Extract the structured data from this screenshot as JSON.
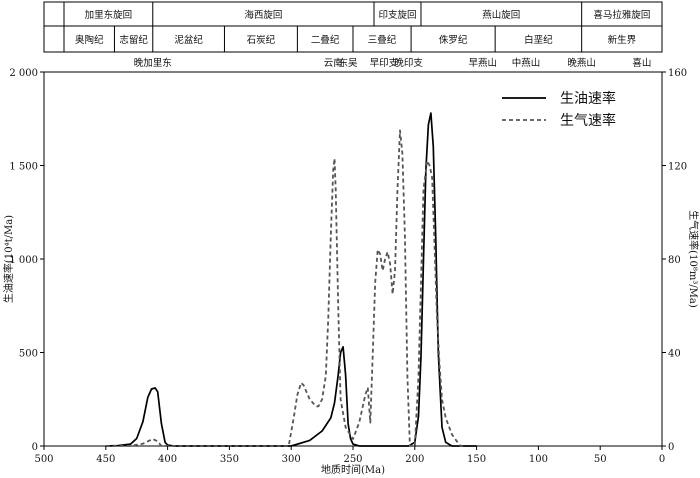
{
  "chart_data": {
    "type": "line",
    "xlabel": "地质时间(Ma)",
    "ylabel_left": "生油速率(10⁴t/Ma)",
    "ylabel_right": "生气速率(10⁸m³/Ma)",
    "xlim": [
      500,
      0
    ],
    "ylim_left": [
      0,
      2000
    ],
    "ylim_right": [
      0,
      160
    ],
    "x_ticks": [
      500,
      450,
      400,
      350,
      300,
      250,
      200,
      150,
      100,
      50,
      0
    ],
    "x_tick_labels": [
      "500",
      "450",
      "400",
      "350",
      "300",
      "250",
      "200",
      "150",
      "100",
      "50",
      "0"
    ],
    "y_left_ticks": [
      0,
      500,
      1000,
      1500,
      2000
    ],
    "y_left_tick_labels": [
      "0",
      "500",
      "1 000",
      "1 500",
      "2 000"
    ],
    "y_right_ticks": [
      0,
      40,
      80,
      120,
      160
    ],
    "y_right_tick_labels": [
      "0",
      "40",
      "80",
      "120",
      "160"
    ],
    "legend": {
      "position": "top-right",
      "entries": [
        "生油速率",
        "生气速率"
      ]
    },
    "series": [
      {
        "name": "生油速率",
        "axis": "left",
        "style": "solid",
        "color": "#000000",
        "x": [
          450,
          440,
          430,
          425,
          420,
          416,
          413,
          410,
          408,
          405,
          402,
          400,
          395,
          350,
          300,
          285,
          275,
          268,
          265,
          262,
          260,
          258,
          256,
          254,
          252,
          250,
          245,
          240,
          230,
          220,
          210,
          205,
          200,
          197,
          195,
          193,
          191,
          189,
          187,
          185,
          183,
          181,
          178,
          175,
          170,
          160,
          150
        ],
        "y": [
          0,
          2,
          10,
          40,
          130,
          260,
          305,
          310,
          290,
          120,
          20,
          5,
          0,
          0,
          0,
          30,
          80,
          150,
          230,
          380,
          500,
          530,
          380,
          120,
          40,
          10,
          0,
          0,
          0,
          0,
          0,
          0,
          20,
          160,
          480,
          1000,
          1480,
          1720,
          1780,
          1600,
          1100,
          500,
          100,
          20,
          0,
          0,
          0
        ]
      },
      {
        "name": "生气速率",
        "axis": "right",
        "style": "dashed",
        "color": "#555555",
        "x": [
          450,
          430,
          420,
          412,
          408,
          405,
          400,
          350,
          302,
          298,
          295,
          292,
          290,
          285,
          280,
          278,
          275,
          272,
          270,
          268,
          266,
          265,
          264,
          262,
          260,
          256,
          250,
          245,
          240,
          238,
          236,
          234,
          232,
          230,
          228,
          226,
          224,
          222,
          220,
          218,
          216,
          214,
          212,
          210,
          208,
          206,
          204,
          202,
          200,
          197,
          195,
          193,
          190,
          188,
          186,
          184,
          182,
          180,
          178,
          175,
          170,
          166,
          163,
          160
        ],
        "y": [
          0,
          0,
          1,
          3,
          2,
          0,
          0,
          0,
          0,
          12,
          22,
          27,
          26,
          20,
          17,
          17,
          20,
          30,
          55,
          90,
          118,
          123,
          110,
          60,
          20,
          8,
          3,
          10,
          22,
          25,
          10,
          40,
          70,
          84,
          82,
          75,
          80,
          83,
          78,
          65,
          75,
          110,
          135,
          125,
          90,
          30,
          0,
          0,
          0,
          30,
          70,
          110,
          122,
          120,
          115,
          85,
          55,
          35,
          20,
          12,
          5,
          2,
          0,
          0
        ]
      }
    ],
    "stratigraphy": {
      "orogeny_row": [
        {
          "label": "加里东旋回",
          "from": 488,
          "to": 412
        },
        {
          "label": "海西旋回",
          "from": 412,
          "to": 233
        },
        {
          "label": "印支旋回",
          "from": 233,
          "to": 195
        },
        {
          "label": "燕山旋回",
          "from": 195,
          "to": 65
        },
        {
          "label": "喜马拉雅旋回",
          "from": 65,
          "to": 0
        }
      ],
      "period_row": [
        {
          "label": "奥陶纪",
          "from": 488,
          "to": 443
        },
        {
          "label": "志留纪",
          "from": 443,
          "to": 412
        },
        {
          "label": "泥盆纪",
          "from": 412,
          "to": 354
        },
        {
          "label": "石炭纪",
          "from": 354,
          "to": 295
        },
        {
          "label": "二叠纪",
          "from": 295,
          "to": 250
        },
        {
          "label": "三叠纪",
          "from": 250,
          "to": 203
        },
        {
          "label": "侏罗纪",
          "from": 203,
          "to": 135
        },
        {
          "label": "白垩纪",
          "from": 135,
          "to": 65
        },
        {
          "label": "新生界",
          "from": 65,
          "to": 0
        }
      ],
      "event_row": [
        {
          "label": "晚加里东",
          "at": 412
        },
        {
          "label": "云南",
          "at": 266
        },
        {
          "label": "东吴",
          "at": 254
        },
        {
          "label": "早印支",
          "at": 225
        },
        {
          "label": "晚印支",
          "at": 205
        },
        {
          "label": "早燕山",
          "at": 145
        },
        {
          "label": "中燕山",
          "at": 110
        },
        {
          "label": "晚燕山",
          "at": 65
        },
        {
          "label": "喜山",
          "at": 7
        }
      ]
    }
  }
}
